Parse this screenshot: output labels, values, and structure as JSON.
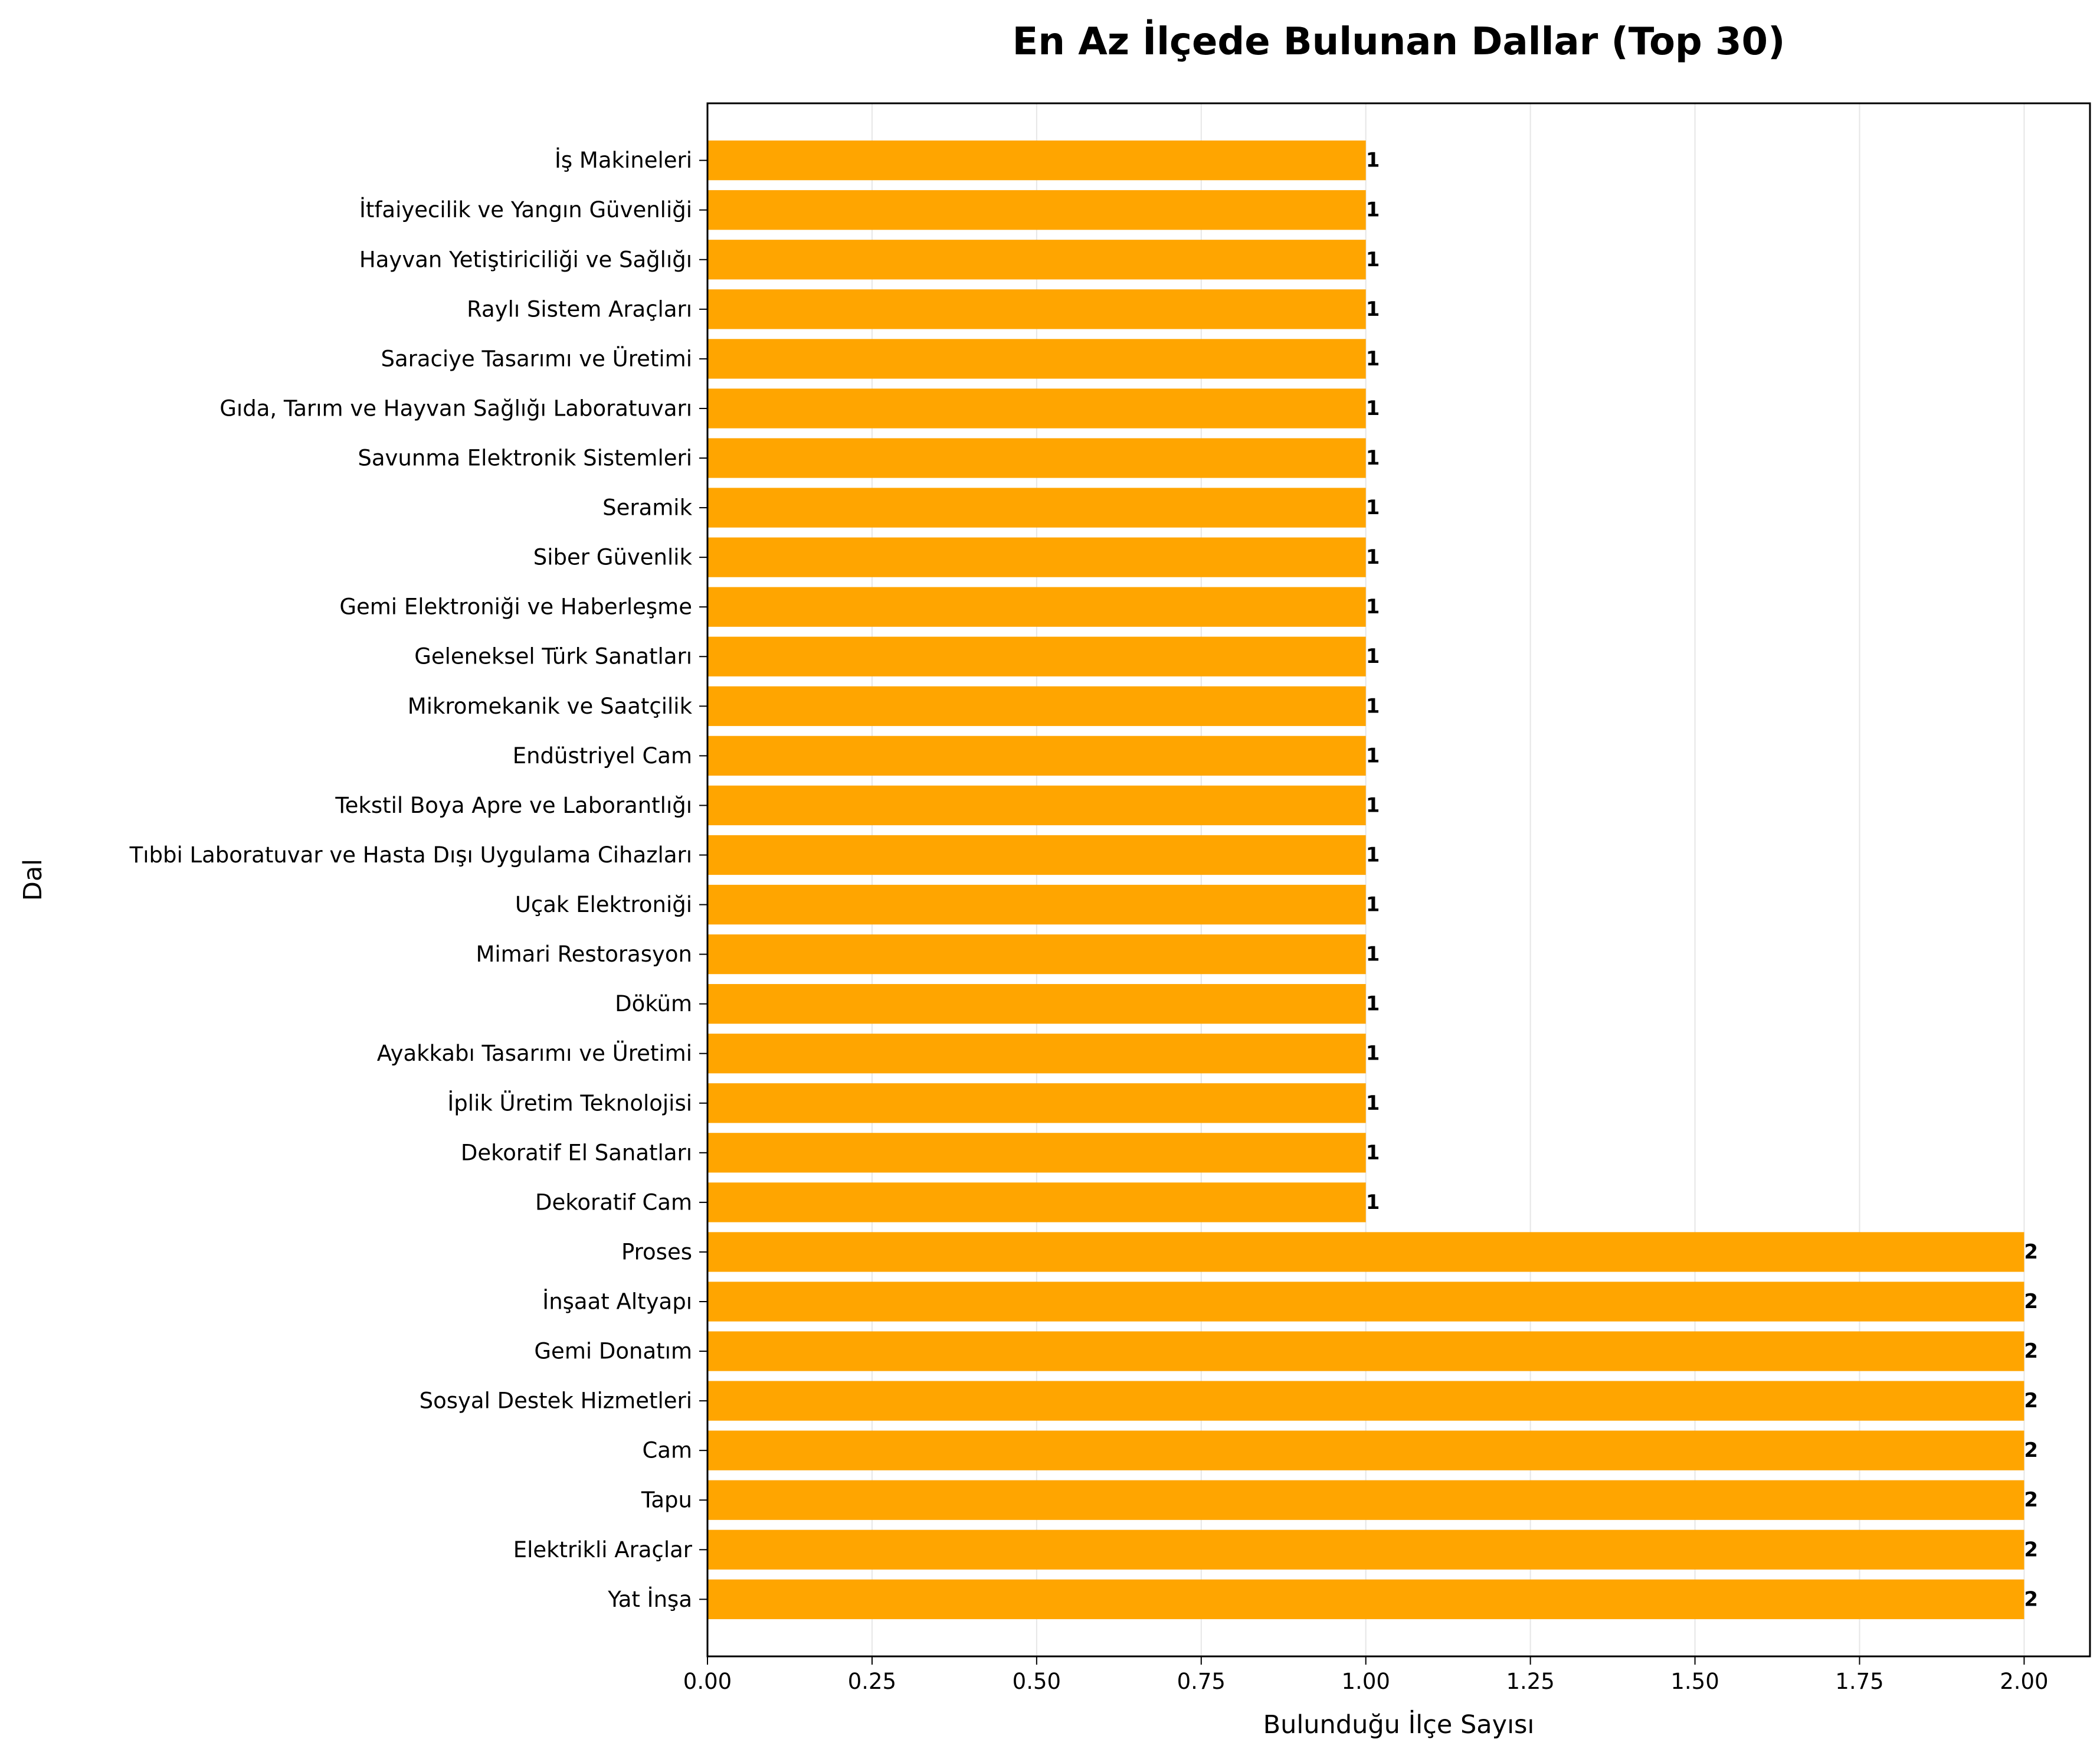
{
  "chart_data": {
    "type": "bar",
    "orientation": "horizontal",
    "title": "En Az İlçede Bulunan Dallar (Top 30)",
    "xlabel": "Bulunduğu İlçe Sayısı",
    "ylabel": "Dal",
    "xlim": [
      0,
      2.1
    ],
    "xticks": [
      0.0,
      0.25,
      0.5,
      0.75,
      1.0,
      1.25,
      1.5,
      1.75,
      2.0
    ],
    "xtick_labels": [
      "0.00",
      "0.25",
      "0.50",
      "0.75",
      "1.00",
      "1.25",
      "1.50",
      "1.75",
      "2.00"
    ],
    "grid": "x-axis vertical gridlines",
    "bar_color": "#FFA500",
    "categories": [
      "İş Makineleri",
      "İtfaiyecilik ve Yangın Güvenliği",
      "Hayvan Yetiştiriciliği ve Sağlığı",
      "Raylı Sistem Araçları",
      "Saraciye Tasarımı ve Üretimi",
      "Gıda, Tarım ve Hayvan Sağlığı Laboratuvarı",
      "Savunma Elektronik Sistemleri",
      "Seramik",
      "Siber Güvenlik",
      "Gemi Elektroniği ve Haberleşme",
      "Geleneksel Türk Sanatları",
      "Mikromekanik ve Saatçilik",
      "Endüstriyel Cam",
      "Tekstil Boya Apre ve Laborantlığı",
      "Tıbbi Laboratuvar ve Hasta Dışı Uygulama Cihazları",
      "Uçak Elektroniği",
      "Mimari Restorasyon",
      "Döküm",
      "Ayakkabı Tasarımı ve Üretimi",
      "İplik Üretim Teknolojisi",
      "Dekoratif El Sanatları",
      "Dekoratif Cam",
      "Proses",
      "İnşaat Altyapı",
      "Gemi Donatım",
      "Sosyal Destek Hizmetleri",
      "Cam",
      "Tapu",
      "Elektrikli Araçlar",
      "Yat İnşa"
    ],
    "values": [
      1,
      1,
      1,
      1,
      1,
      1,
      1,
      1,
      1,
      1,
      1,
      1,
      1,
      1,
      1,
      1,
      1,
      1,
      1,
      1,
      1,
      1,
      2,
      2,
      2,
      2,
      2,
      2,
      2,
      2
    ],
    "value_labels": [
      "1",
      "1",
      "1",
      "1",
      "1",
      "1",
      "1",
      "1",
      "1",
      "1",
      "1",
      "1",
      "1",
      "1",
      "1",
      "1",
      "1",
      "1",
      "1",
      "1",
      "1",
      "1",
      "2",
      "2",
      "2",
      "2",
      "2",
      "2",
      "2",
      "2"
    ]
  }
}
